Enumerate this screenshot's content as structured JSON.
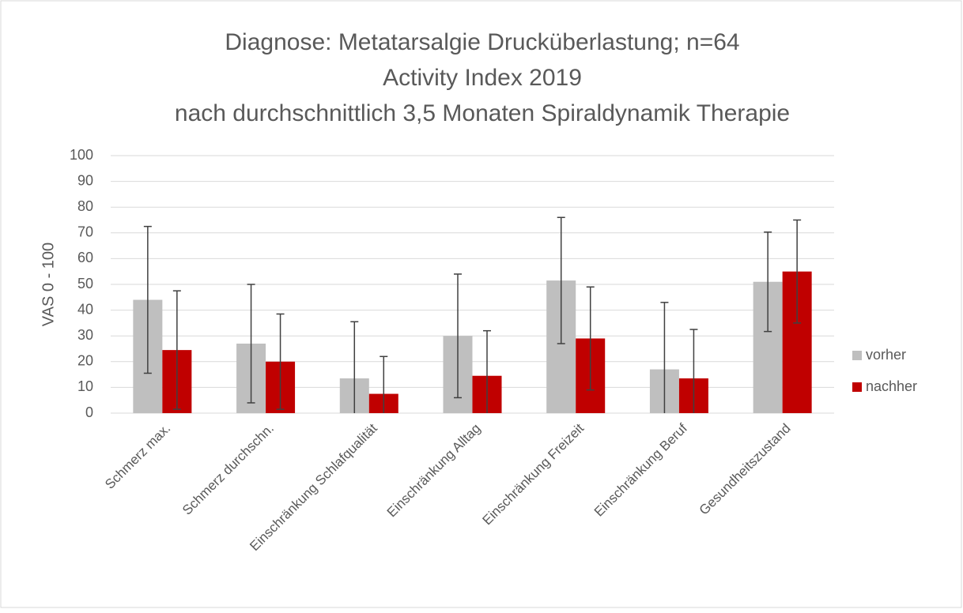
{
  "chart_data": {
    "type": "bar",
    "title": [
      "Diagnose: Metatarsalgie Drucküberlastung; n=64",
      "Activity Index 2019",
      "nach durchschnittlich 3,5 Monaten Spiraldynamik Therapie"
    ],
    "y_label": "VAS 0 - 100",
    "categories": [
      "Schmerz max.",
      "Schmerz durchschn.",
      "Einschränkung Schlafqualität",
      "Einschränkung Alltag",
      "Einschränkung Freizeit",
      "Einschränkung Beruf",
      "Gesundheitszustand"
    ],
    "series": [
      {
        "name": "vorher",
        "color": "#bfbfbf",
        "values": [
          44,
          27,
          13.5,
          30,
          51.5,
          17,
          51
        ],
        "errors": [
          28.5,
          23,
          22,
          24,
          24.5,
          26,
          19.3
        ]
      },
      {
        "name": "nachher",
        "color": "#c00000",
        "values": [
          24.5,
          20,
          7.5,
          14.5,
          29,
          13.5,
          55
        ],
        "errors": [
          23,
          18.5,
          14.5,
          17.5,
          20,
          19,
          20
        ]
      }
    ],
    "ylim": [
      0,
      100
    ],
    "yticks": [
      0,
      10,
      20,
      30,
      40,
      50,
      60,
      70,
      80,
      90,
      100
    ],
    "grid": true,
    "legend": "right"
  }
}
